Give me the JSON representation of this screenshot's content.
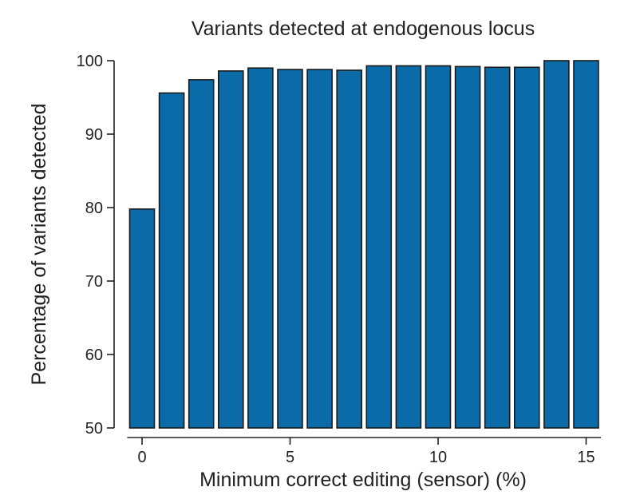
{
  "chart_data": {
    "type": "bar",
    "title": "Variants detected at endogenous locus",
    "xlabel": "Minimum correct editing (sensor) (%)",
    "ylabel": "Percentage of variants detected",
    "x": [
      0,
      1,
      2,
      3,
      4,
      5,
      6,
      7,
      8,
      9,
      10,
      11,
      12,
      13,
      14,
      15
    ],
    "values": [
      79.8,
      95.6,
      97.4,
      98.6,
      99.0,
      98.8,
      98.8,
      98.7,
      99.3,
      99.3,
      99.3,
      99.2,
      99.1,
      99.1,
      100.0,
      100.0
    ],
    "xlim": [
      -0.5,
      15.5
    ],
    "ylim": [
      50,
      100
    ],
    "xticks": [
      "0",
      "5",
      "10",
      "15"
    ],
    "yticks": [
      "50",
      "60",
      "70",
      "80",
      "90",
      "100"
    ],
    "grid": false,
    "legend": "none",
    "bar_color": "#0b6aa8"
  }
}
